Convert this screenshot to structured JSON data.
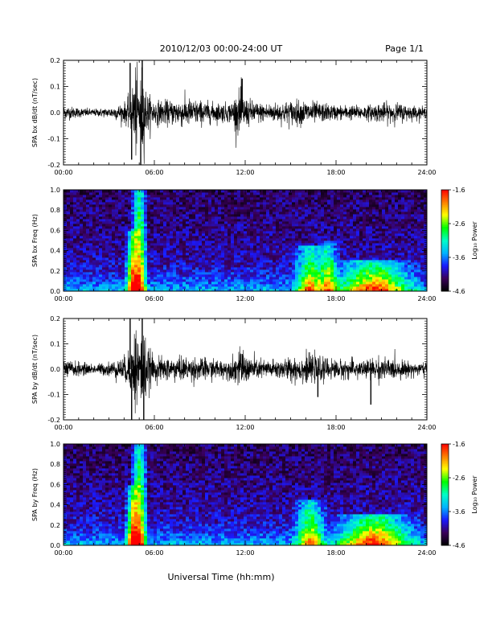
{
  "header": {
    "date_range": "2010/12/03  00:00-24:00 UT",
    "page": "Page 1/1"
  },
  "colors": {
    "trace": "#000000",
    "axes": "#000000",
    "spectrogram_colormap": [
      "#000000",
      "#3a005a",
      "#1a1aff",
      "#00b4ff",
      "#00ffc8",
      "#00ff00",
      "#ffff00",
      "#ff8000",
      "#ff0000"
    ]
  },
  "chart_data": [
    {
      "type": "line",
      "ylabel": "SPA bx dB/dt (nT/sec)",
      "xlim": [
        0,
        24
      ],
      "ylim": [
        -0.2,
        0.2
      ],
      "x_ticks": [
        "00:00",
        "06:00",
        "12:00",
        "18:00",
        "24:00"
      ],
      "y_ticks": [
        "-0.2",
        "-0.1",
        "0.0",
        "0.1",
        "0.2"
      ],
      "y_tick_values": [
        -0.2,
        -0.1,
        0.0,
        0.1,
        0.2
      ],
      "envelope": {
        "x": [
          0,
          1,
          2,
          3,
          4,
          4.5,
          4.7,
          5.0,
          5.2,
          5.5,
          6,
          7,
          8,
          9,
          10,
          11,
          11.7,
          12,
          13,
          14,
          15,
          16,
          17,
          18,
          19,
          20,
          21,
          22,
          23,
          24
        ],
        "half_amplitude": [
          0.03,
          0.02,
          0.015,
          0.02,
          0.04,
          0.08,
          0.2,
          0.12,
          0.2,
          0.08,
          0.05,
          0.05,
          0.06,
          0.05,
          0.04,
          0.04,
          0.1,
          0.06,
          0.04,
          0.04,
          0.05,
          0.05,
          0.04,
          0.03,
          0.03,
          0.03,
          0.04,
          0.04,
          0.03,
          0.02
        ]
      },
      "spikes": [
        {
          "x": 4.4,
          "y": 0.19
        },
        {
          "x": 4.5,
          "y": -0.18
        },
        {
          "x": 5.1,
          "y": -0.2
        },
        {
          "x": 5.2,
          "y": 0.2
        },
        {
          "x": 11.8,
          "y": 0.13
        }
      ]
    },
    {
      "type": "heatmap",
      "ylabel": "SPA bx Freq (Hz)",
      "xlim": [
        0,
        24
      ],
      "ylim": [
        0.0,
        1.0
      ],
      "x_ticks": [
        "00:00",
        "06:00",
        "12:00",
        "18:00",
        "24:00"
      ],
      "y_ticks": [
        "0.0",
        "0.2",
        "0.4",
        "0.6",
        "0.8",
        "1.0"
      ],
      "y_tick_values": [
        0.0,
        0.2,
        0.4,
        0.6,
        0.8,
        1.0
      ],
      "colorbar": {
        "label": "Log₁₀ Power",
        "range": [
          -4.6,
          -1.6
        ],
        "ticks": [
          "-1.6",
          "-2.6",
          "-3.6",
          "-4.6"
        ],
        "tick_values": [
          -1.6,
          -2.6,
          -3.6,
          -4.6
        ]
      },
      "features": [
        {
          "x_center": 5.0,
          "x_width": 0.4,
          "f_max": 1.0,
          "level": 0.75
        },
        {
          "x_center": 4.5,
          "x_width": 0.3,
          "f_max": 0.6,
          "level": 0.6
        },
        {
          "x_center": 16.3,
          "x_width": 0.8,
          "f_max": 0.45,
          "level": 0.55
        },
        {
          "x_center": 17.5,
          "x_width": 0.5,
          "f_max": 0.5,
          "level": 0.5
        },
        {
          "x_center": 20.5,
          "x_width": 2.0,
          "f_max": 0.3,
          "level": 0.6
        }
      ]
    },
    {
      "type": "line",
      "ylabel": "SPA by dB/dt (nT/sec)",
      "xlim": [
        0,
        24
      ],
      "ylim": [
        -0.2,
        0.2
      ],
      "x_ticks": [
        "00:00",
        "06:00",
        "12:00",
        "18:00",
        "24:00"
      ],
      "y_ticks": [
        "-0.2",
        "-0.1",
        "0.0",
        "0.1",
        "0.2"
      ],
      "y_tick_values": [
        -0.2,
        -0.1,
        0.0,
        0.1,
        0.2
      ],
      "envelope": {
        "x": [
          0,
          1,
          2,
          3,
          4,
          4.5,
          4.7,
          5.0,
          5.2,
          5.5,
          6,
          7,
          8,
          9,
          10,
          11,
          11.7,
          12,
          13,
          14,
          15,
          16,
          17,
          18,
          19,
          20,
          21,
          22,
          23,
          24
        ],
        "half_amplitude": [
          0.04,
          0.03,
          0.02,
          0.03,
          0.05,
          0.1,
          0.2,
          0.15,
          0.2,
          0.1,
          0.05,
          0.05,
          0.05,
          0.05,
          0.04,
          0.04,
          0.08,
          0.06,
          0.04,
          0.04,
          0.05,
          0.06,
          0.05,
          0.04,
          0.04,
          0.04,
          0.05,
          0.04,
          0.03,
          0.03
        ]
      },
      "spikes": [
        {
          "x": 4.4,
          "y": 0.2
        },
        {
          "x": 4.5,
          "y": -0.2
        },
        {
          "x": 5.2,
          "y": 0.2
        },
        {
          "x": 5.3,
          "y": -0.2
        },
        {
          "x": 11.8,
          "y": 0.06
        },
        {
          "x": 16.8,
          "y": -0.11
        },
        {
          "x": 20.3,
          "y": -0.14
        }
      ]
    },
    {
      "type": "heatmap",
      "ylabel": "SPA by Freq (Hz)",
      "xlim": [
        0,
        24
      ],
      "ylim": [
        0.0,
        1.0
      ],
      "x_ticks": [
        "00:00",
        "06:00",
        "12:00",
        "18:00",
        "24:00"
      ],
      "y_ticks": [
        "0.0",
        "0.2",
        "0.4",
        "0.6",
        "0.8",
        "1.0"
      ],
      "y_tick_values": [
        0.0,
        0.2,
        0.4,
        0.6,
        0.8,
        1.0
      ],
      "colorbar": {
        "label": "Log₁₀ Power",
        "range": [
          -4.6,
          -1.6
        ],
        "ticks": [
          "-1.6",
          "-2.6",
          "-3.6",
          "-4.6"
        ],
        "tick_values": [
          -1.6,
          -2.6,
          -3.6,
          -4.6
        ]
      },
      "features": [
        {
          "x_center": 5.0,
          "x_width": 0.4,
          "f_max": 1.0,
          "level": 0.75
        },
        {
          "x_center": 4.5,
          "x_width": 0.3,
          "f_max": 0.6,
          "level": 0.6
        },
        {
          "x_center": 16.3,
          "x_width": 0.8,
          "f_max": 0.45,
          "level": 0.55
        },
        {
          "x_center": 20.5,
          "x_width": 2.0,
          "f_max": 0.3,
          "level": 0.65
        }
      ]
    }
  ],
  "footer": {
    "xlabel": "Universal Time (hh:mm)"
  }
}
